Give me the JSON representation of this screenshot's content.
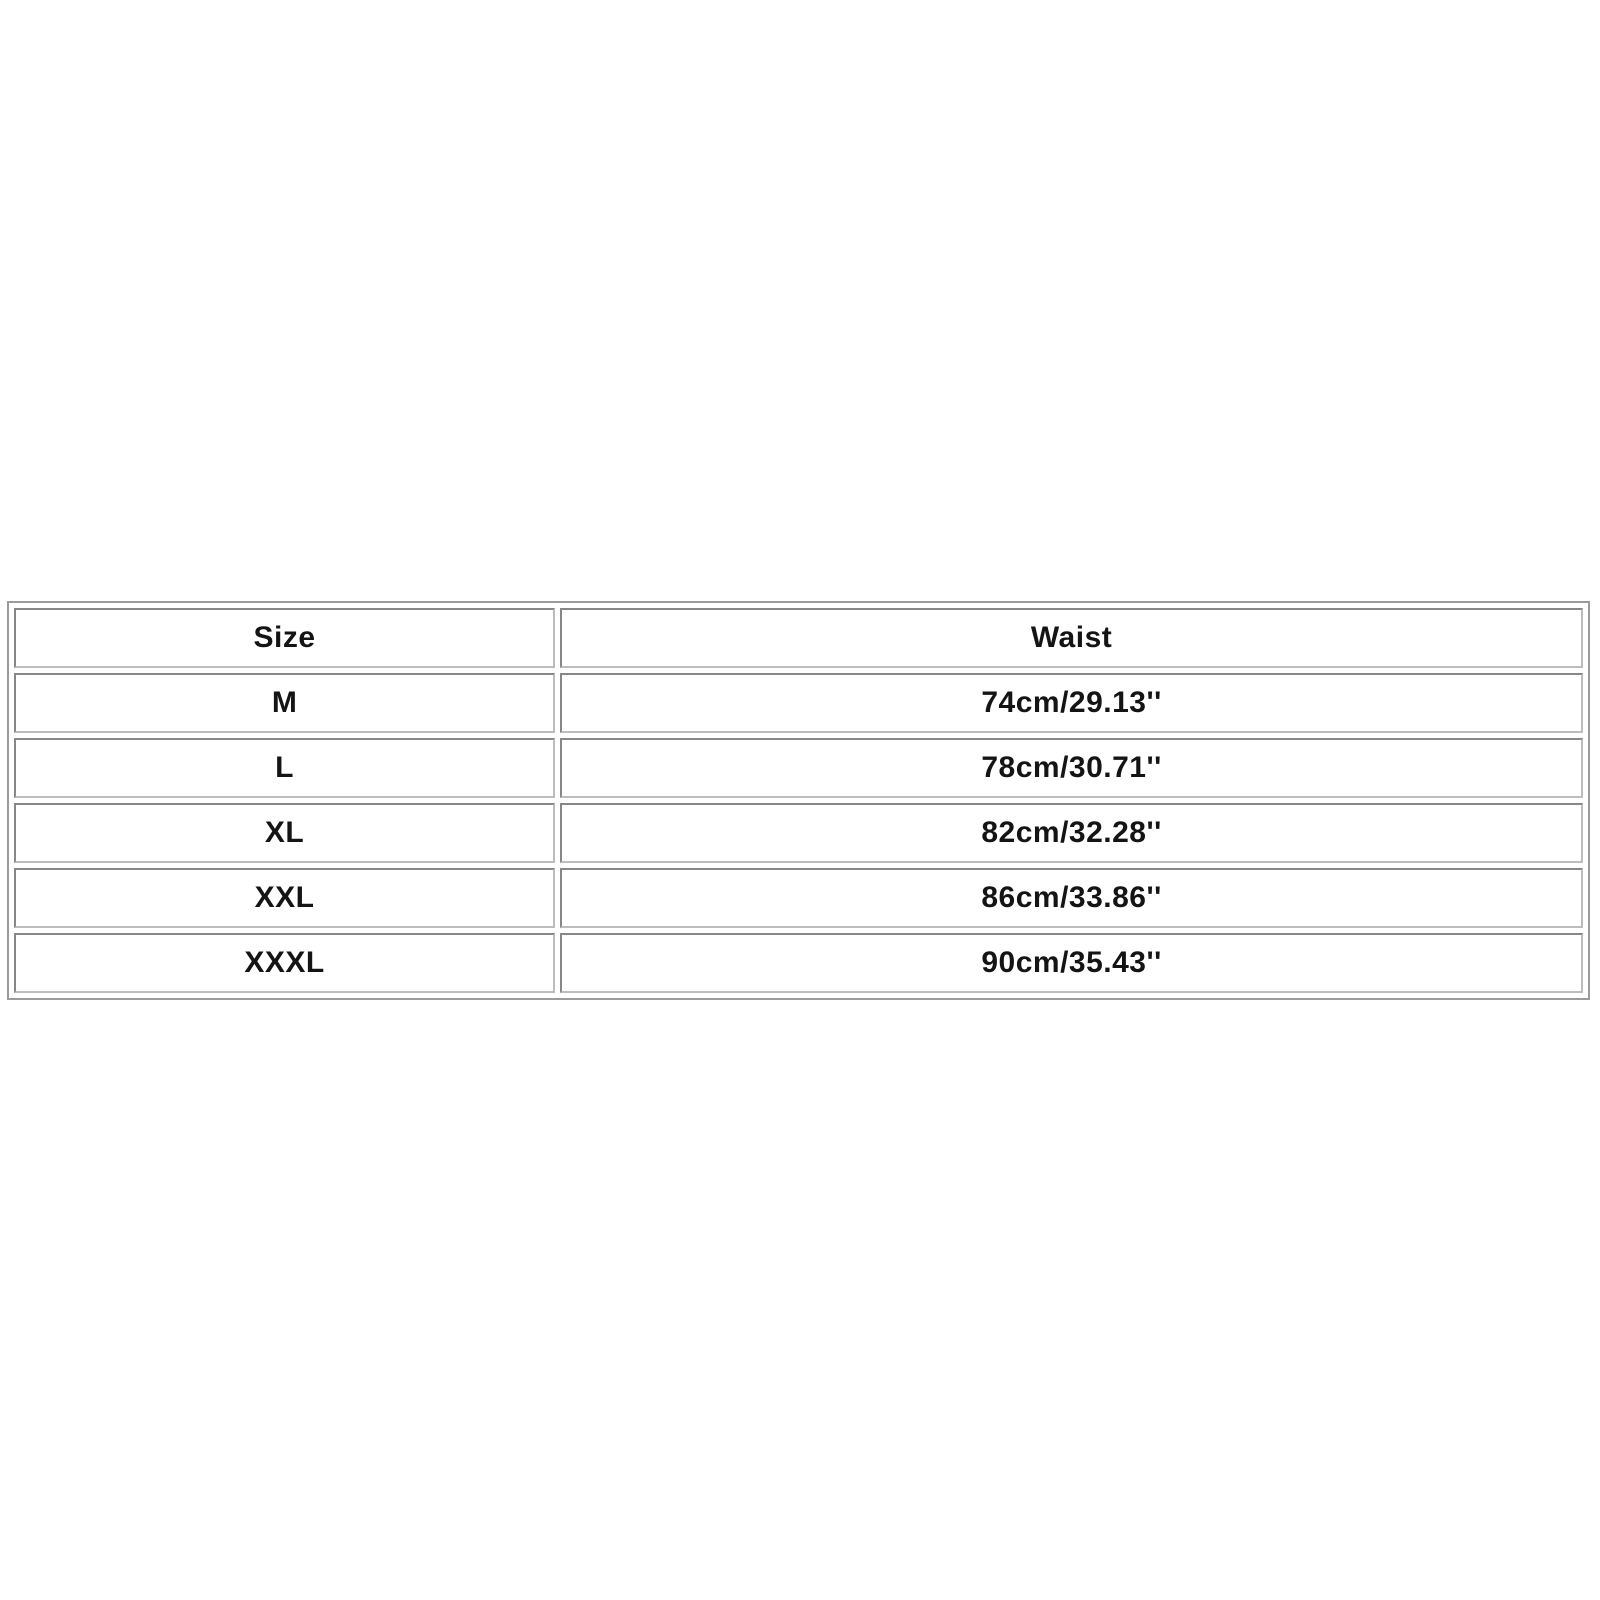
{
  "size_chart": {
    "headers": {
      "size": "Size",
      "waist": "Waist"
    },
    "rows": [
      {
        "size": "M",
        "waist": "74cm/29.13''"
      },
      {
        "size": "L",
        "waist": "78cm/30.71''"
      },
      {
        "size": "XL",
        "waist": "82cm/32.28''"
      },
      {
        "size": "XXL",
        "waist": "86cm/33.86''"
      },
      {
        "size": "XXXL",
        "waist": "90cm/35.43''"
      }
    ]
  },
  "chart_data": {
    "type": "table",
    "title": "Size chart",
    "columns": [
      "Size",
      "Waist"
    ],
    "rows": [
      [
        "M",
        "74cm/29.13''"
      ],
      [
        "L",
        "78cm/30.71''"
      ],
      [
        "XL",
        "82cm/32.28''"
      ],
      [
        "XXL",
        "86cm/33.86''"
      ],
      [
        "XXXL",
        "90cm/35.43''"
      ]
    ],
    "sizes": [
      "M",
      "L",
      "XL",
      "XXL",
      "XXXL"
    ],
    "waist_cm": [
      74,
      78,
      82,
      86,
      90
    ],
    "waist_inches": [
      29.13,
      30.71,
      32.28,
      33.86,
      35.43
    ]
  },
  "colors": {
    "background": "#ffffff",
    "text": "#141414",
    "border_outer": "#9b9b9b",
    "border_cell_dark": "#878787",
    "border_cell_light": "#bdbdbd"
  }
}
